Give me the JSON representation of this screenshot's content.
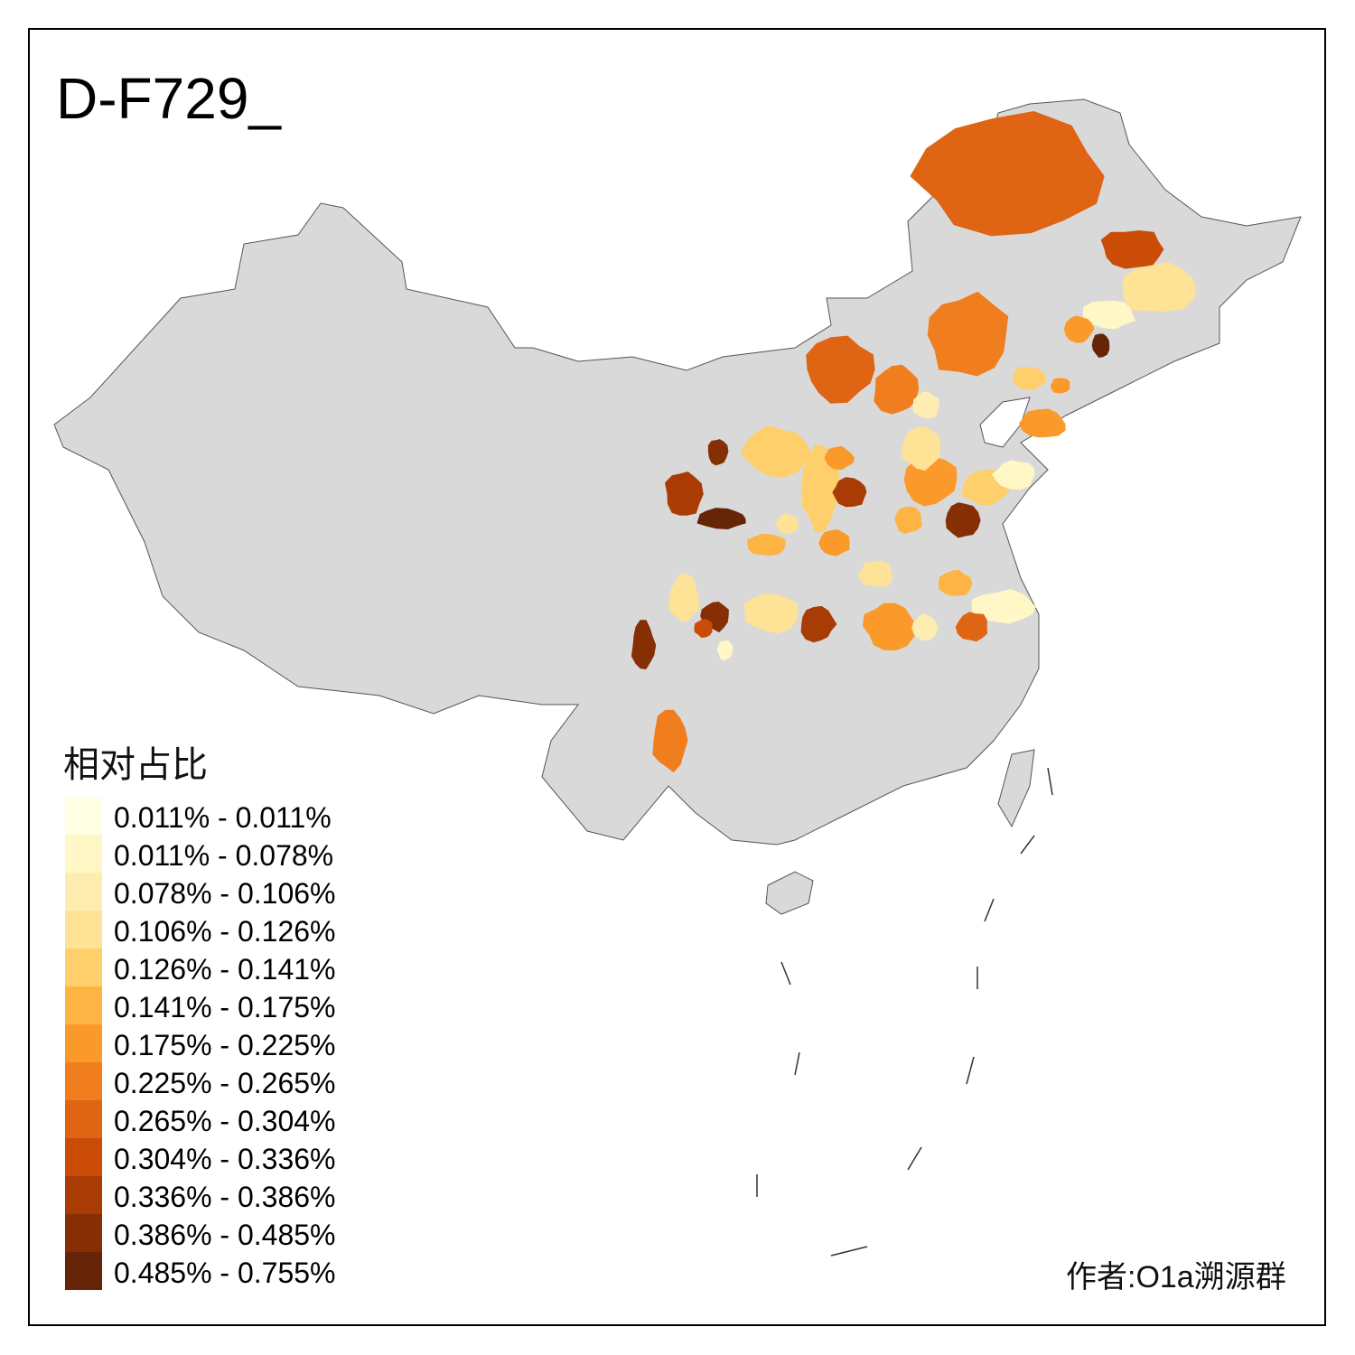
{
  "title": "D-F729_",
  "legend": {
    "title": "相对占比",
    "items": [
      {
        "label": "0.011% - 0.011%",
        "color": "#FFFFE5"
      },
      {
        "label": "0.011% - 0.078%",
        "color": "#FFF7C6"
      },
      {
        "label": "0.078% - 0.106%",
        "color": "#FEEDB0"
      },
      {
        "label": "0.106% - 0.126%",
        "color": "#FEE295"
      },
      {
        "label": "0.126% - 0.141%",
        "color": "#FECF6A"
      },
      {
        "label": "0.141% - 0.175%",
        "color": "#FDB444"
      },
      {
        "label": "0.175% - 0.225%",
        "color": "#FB9A2A"
      },
      {
        "label": "0.225% - 0.265%",
        "color": "#F07E1F"
      },
      {
        "label": "0.265% - 0.304%",
        "color": "#DF6413"
      },
      {
        "label": "0.304% - 0.336%",
        "color": "#CB4C06"
      },
      {
        "label": "0.336% - 0.386%",
        "color": "#A93C04"
      },
      {
        "label": "0.386% - 0.485%",
        "color": "#862F05"
      },
      {
        "label": "0.485% - 0.755%",
        "color": "#662506"
      }
    ]
  },
  "base_color": "#D9D9D9",
  "region_classes": [
    8,
    9,
    3,
    1,
    12,
    6,
    7,
    8,
    7,
    2,
    4,
    6,
    6,
    11,
    10,
    12,
    4,
    4,
    6,
    10,
    6,
    3,
    11,
    4,
    1,
    5,
    6,
    5,
    3,
    3,
    5,
    1,
    3,
    11,
    9,
    3,
    10,
    6,
    2,
    8,
    1,
    11,
    7
  ],
  "author": "作者:O1a溯源群"
}
